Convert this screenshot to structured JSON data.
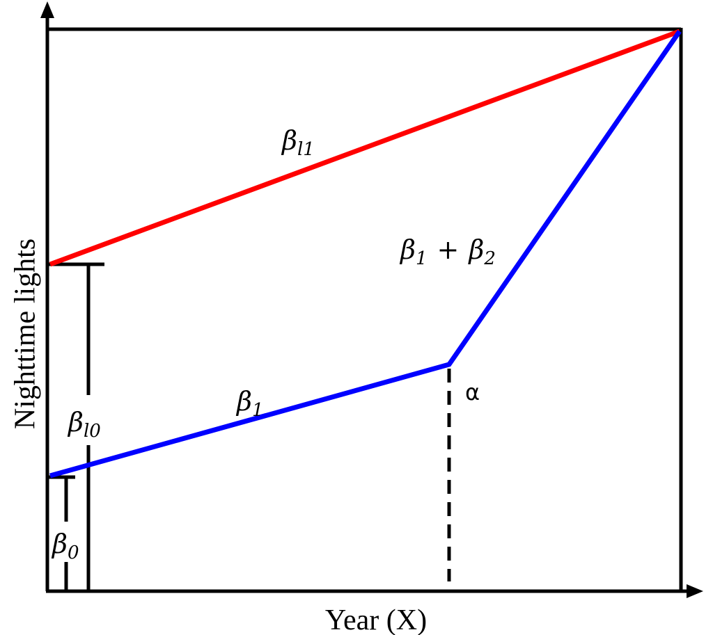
{
  "axes": {
    "y_label": "Nighttime lights",
    "x_label": "Year (X)"
  },
  "labels": {
    "beta_l1": {
      "symbol": "β",
      "subscript": "l1"
    },
    "beta_1_plus_beta_2": {
      "symbol": "β",
      "subscript": "1",
      "operator": "+",
      "symbol2": "β",
      "subscript2": "2"
    },
    "beta_1": {
      "symbol": "β",
      "subscript": "1"
    },
    "alpha": "α",
    "beta_l0": {
      "symbol": "β",
      "subscript": "l0"
    },
    "beta_0": {
      "symbol": "β",
      "subscript": "0"
    }
  }
}
